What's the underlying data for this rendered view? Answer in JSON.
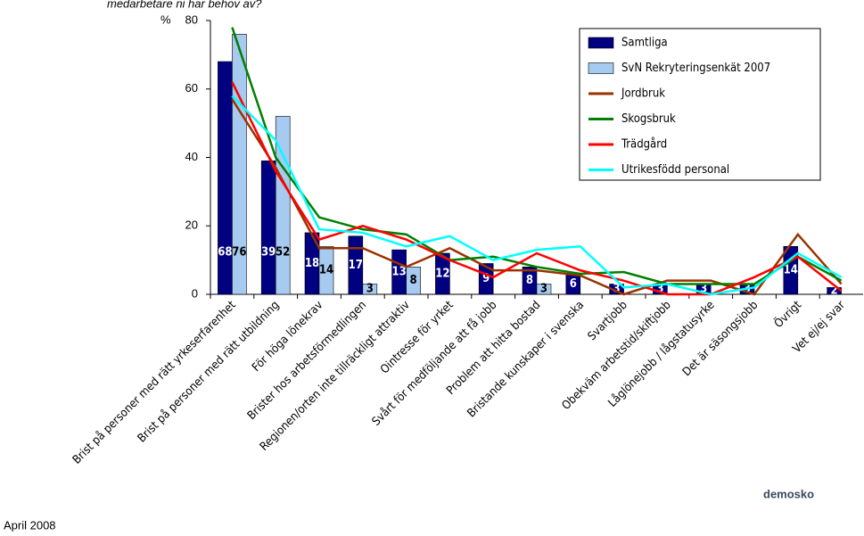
{
  "chart_data": {
    "type": "bar-line",
    "subtitle": "medarbetare ni har behov av?",
    "ylabel": "%",
    "footer": "April 2008",
    "logo": "demosko",
    "categories": [
      "Brist på personer med rätt yrkeserfarenhet",
      "Brist på personer med rätt utbildning",
      "För höga lönekrav",
      "Brister hos arbetsförmedlingen",
      "Regionen/orten inte tillräckligt attraktiv",
      "Ointresse för yrket",
      "Svårt för medföljande att få jobb",
      "Problem att hitta bostad",
      "Bristande kunskaper i svenska",
      "Svartjobb",
      "Obekväm arbetstid/skiftjobb",
      "Låglönejobb / lågstatusyrke",
      "Det är säsongsjobb",
      "Övrigt",
      "Vet ej/ej svar"
    ],
    "series": [
      {
        "name": "Samtliga",
        "kind": "bar",
        "color": "#000080",
        "values": [
          68,
          39,
          18,
          17,
          13,
          12,
          9,
          8,
          6,
          3,
          3,
          3,
          3,
          14,
          2
        ]
      },
      {
        "name": "SvN Rekryteringsenkät 2007",
        "kind": "bar",
        "color": "#a6caf0",
        "values": [
          76,
          52,
          14,
          3,
          8,
          null,
          null,
          3,
          null,
          null,
          null,
          null,
          null,
          null,
          null
        ]
      },
      {
        "name": "Jordbruk",
        "kind": "line",
        "color": "#993300",
        "values": [
          57,
          37,
          13.5,
          13.5,
          8,
          13.5,
          7,
          7,
          5.5,
          0,
          4,
          4,
          0,
          17.5,
          3
        ]
      },
      {
        "name": "Skogsbruk",
        "kind": "line",
        "color": "#008000",
        "values": [
          78,
          40,
          22.5,
          19,
          17.5,
          10,
          11,
          8,
          6,
          6.5,
          3,
          3,
          3,
          11,
          4
        ]
      },
      {
        "name": "Trädgård",
        "kind": "line",
        "color": "#ff0000",
        "values": [
          62,
          36,
          16,
          20,
          16,
          10,
          5,
          12,
          7,
          4,
          0,
          0,
          5,
          11,
          1
        ]
      },
      {
        "name": "Utrikesfödd personal",
        "kind": "line",
        "color": "#00ffff",
        "values": [
          58,
          45,
          19,
          18,
          14,
          17,
          10,
          13,
          14,
          2,
          3,
          0,
          2,
          12,
          5
        ]
      }
    ],
    "ylim": [
      0,
      80
    ],
    "yticks": [
      0,
      20,
      40,
      60,
      80
    ]
  }
}
